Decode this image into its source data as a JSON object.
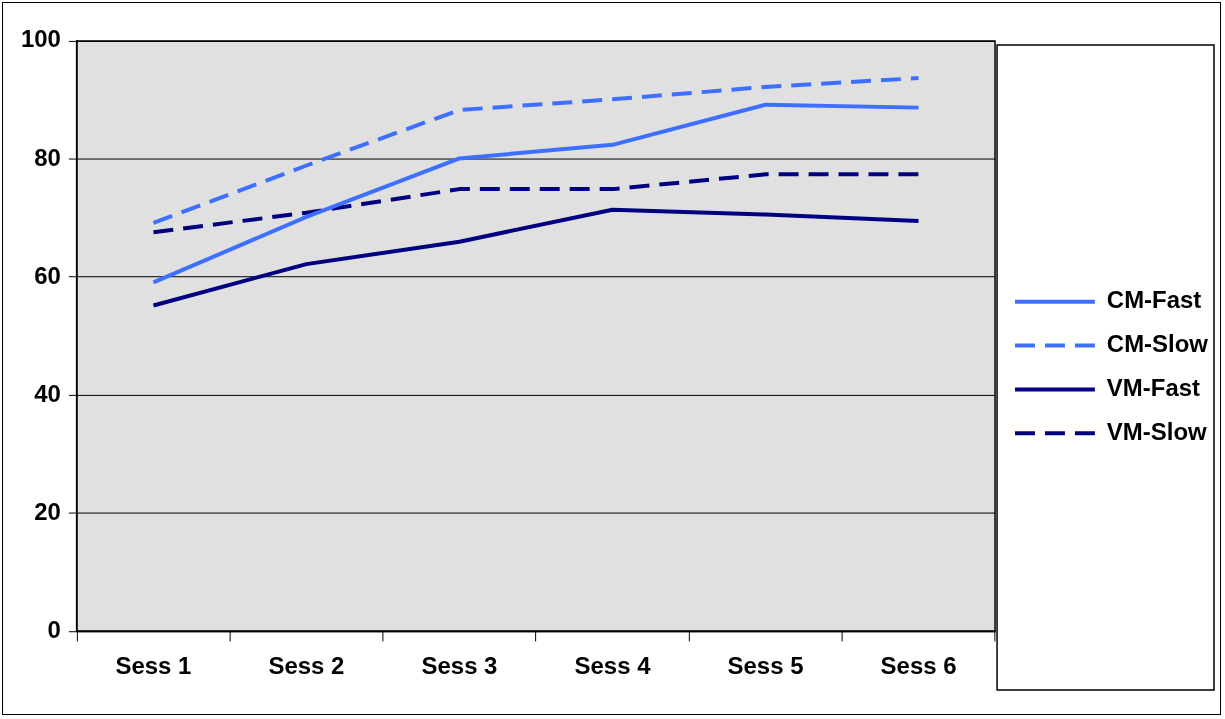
{
  "chart_data": {
    "type": "line",
    "categories": [
      "Sess 1",
      "Sess 2",
      "Sess 3",
      "Sess 4",
      "Sess 5",
      "Sess 6"
    ],
    "series": [
      {
        "name": "CM-Fast",
        "color": "#3f6fff",
        "line_style": "solid",
        "values": [
          59.1,
          70.2,
          80.1,
          82.4,
          89.2,
          88.7
        ]
      },
      {
        "name": "CM-Slow",
        "color": "#3f6fff",
        "line_style": "dashed",
        "values": [
          69.2,
          78.9,
          88.3,
          90.1,
          92.2,
          93.7
        ]
      },
      {
        "name": "VM-Fast",
        "color": "#000080",
        "line_style": "solid",
        "values": [
          55.2,
          62.2,
          66.0,
          71.4,
          70.6,
          69.5
        ]
      },
      {
        "name": "VM-Slow",
        "color": "#000080",
        "line_style": "dashed",
        "values": [
          67.6,
          70.9,
          74.9,
          74.9,
          77.4,
          77.4
        ]
      }
    ],
    "ylim": [
      0,
      100
    ],
    "yticks": [
      0,
      20,
      40,
      60,
      80,
      100
    ],
    "grid": "y",
    "legend": "right",
    "marker": "none"
  }
}
